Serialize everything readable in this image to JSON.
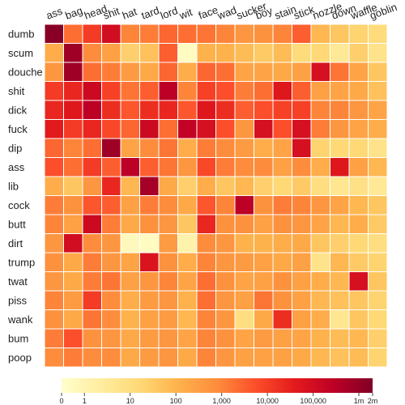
{
  "chart_data": {
    "type": "heatmap",
    "title": "",
    "xlabel": "",
    "ylabel": "",
    "columns": [
      "ass",
      "bag",
      "head",
      "shit",
      "hat",
      "tard",
      "lord",
      "wit",
      "face",
      "wad",
      "sucker",
      "boy",
      "stain",
      "stick",
      "nozzle",
      "down",
      "waffle",
      "goblin"
    ],
    "rows": [
      "dumb",
      "scum",
      "douche",
      "shit",
      "dick",
      "fuck",
      "dip",
      "ass",
      "lib",
      "cock",
      "butt",
      "dirt",
      "trump",
      "twat",
      "piss",
      "wank",
      "bum",
      "poop"
    ],
    "values_log10": [
      [
        6.3,
        3.6,
        4.3,
        5.2,
        3.3,
        3.4,
        3.7,
        3.6,
        3.5,
        3.3,
        3.0,
        3.1,
        3.3,
        3.8,
        2.3,
        2.0,
        1.7,
        1.5
      ],
      [
        2.5,
        6.0,
        3.2,
        2.8,
        1.8,
        2.1,
        3.8,
        0.2,
        2.4,
        2.4,
        2.2,
        1.9,
        2.2,
        1.5,
        1.6,
        1.0,
        1.8,
        1.2
      ],
      [
        3.0,
        6.0,
        3.6,
        3.4,
        2.9,
        2.6,
        3.7,
        2.5,
        3.7,
        3.6,
        2.7,
        2.7,
        2.6,
        2.8,
        5.1,
        3.5,
        2.7,
        2.0
      ],
      [
        4.3,
        4.6,
        5.3,
        4.2,
        3.5,
        3.8,
        5.6,
        3.3,
        4.2,
        4.0,
        3.4,
        3.6,
        4.9,
        3.8,
        2.8,
        2.7,
        2.6,
        2.1
      ],
      [
        4.6,
        4.9,
        5.6,
        4.5,
        3.9,
        4.5,
        4.6,
        3.9,
        4.9,
        4.5,
        3.8,
        4.0,
        4.2,
        4.2,
        3.3,
        3.3,
        3.0,
        2.7
      ],
      [
        4.8,
        4.3,
        4.6,
        4.1,
        3.7,
        5.3,
        3.6,
        5.5,
        5.1,
        4.0,
        3.0,
        5.1,
        4.0,
        5.1,
        3.4,
        3.0,
        2.7,
        2.5
      ],
      [
        3.7,
        3.3,
        3.6,
        6.0,
        2.7,
        3.2,
        3.5,
        2.5,
        3.4,
        3.2,
        2.9,
        2.5,
        2.7,
        5.1,
        1.7,
        1.6,
        1.6,
        1.2
      ],
      [
        4.0,
        3.6,
        4.3,
        3.8,
        5.6,
        3.8,
        3.5,
        3.0,
        4.1,
        3.4,
        3.2,
        3.2,
        2.8,
        3.2,
        2.5,
        4.9,
        2.8,
        2.3
      ],
      [
        2.5,
        2.0,
        3.0,
        4.6,
        2.3,
        5.9,
        2.6,
        1.8,
        2.5,
        2.0,
        2.3,
        1.8,
        1.6,
        1.9,
        1.4,
        1.1,
        1.3,
        1.0
      ],
      [
        3.4,
        3.1,
        3.9,
        3.8,
        2.8,
        3.4,
        3.2,
        2.6,
        3.9,
        3.3,
        5.6,
        3.1,
        3.4,
        3.3,
        3.0,
        2.7,
        2.3,
        2.0
      ],
      [
        3.3,
        2.8,
        5.3,
        3.4,
        2.6,
        3.1,
        3.0,
        2.0,
        4.6,
        3.1,
        3.1,
        2.8,
        3.1,
        3.0,
        2.7,
        2.3,
        2.5,
        1.9
      ],
      [
        3.0,
        5.2,
        3.2,
        3.0,
        0.3,
        0.2,
        2.9,
        0.6,
        3.2,
        3.0,
        2.4,
        2.4,
        2.5,
        2.6,
        2.0,
        1.8,
        1.6,
        1.4
      ],
      [
        3.1,
        2.6,
        3.4,
        3.0,
        2.7,
        5.0,
        3.1,
        2.5,
        3.3,
        3.0,
        2.9,
        2.8,
        2.6,
        2.8,
        1.2,
        2.3,
        1.9,
        1.7
      ],
      [
        3.0,
        2.6,
        3.4,
        3.5,
        2.8,
        3.0,
        3.3,
        2.7,
        3.6,
        3.1,
        2.7,
        2.8,
        3.1,
        2.8,
        2.5,
        2.3,
        5.1,
        2.0
      ],
      [
        3.3,
        2.9,
        4.3,
        3.2,
        2.5,
        2.9,
        3.0,
        2.4,
        3.6,
        3.0,
        2.8,
        3.5,
        3.1,
        2.8,
        2.3,
        2.1,
        2.0,
        1.7
      ],
      [
        3.1,
        2.6,
        3.5,
        3.2,
        2.4,
        2.8,
        2.9,
        2.3,
        3.3,
        3.0,
        1.4,
        2.6,
        4.5,
        2.8,
        2.5,
        1.1,
        2.0,
        1.6
      ],
      [
        3.4,
        4.0,
        3.1,
        3.0,
        2.6,
        2.9,
        3.0,
        2.7,
        3.3,
        3.1,
        2.7,
        2.9,
        2.8,
        2.7,
        2.4,
        2.2,
        2.3,
        1.8
      ],
      [
        3.2,
        3.4,
        3.2,
        3.2,
        2.6,
        2.9,
        3.0,
        2.6,
        3.3,
        3.0,
        2.8,
        2.8,
        2.8,
        2.6,
        2.3,
        2.1,
        2.2,
        1.7
      ]
    ],
    "colorbar": {
      "scale": "log",
      "range_log10": [
        0,
        6.4
      ],
      "ticks": [
        {
          "label": "0",
          "log10": 0
        },
        {
          "label": "1",
          "log10": 0.5
        },
        {
          "label": "10",
          "log10": 1.5
        },
        {
          "label": "100",
          "log10": 2.5
        },
        {
          "label": "1,000",
          "log10": 3.5
        },
        {
          "label": "10,000",
          "log10": 4.5
        },
        {
          "label": "100,000",
          "log10": 5.5
        },
        {
          "label": "1m",
          "log10": 6.5
        },
        {
          "label": "2m",
          "log10": 6.8
        }
      ],
      "colormap": "YlOrRd",
      "stops": [
        "#ffffcc",
        "#ffeda0",
        "#fed976",
        "#feb24c",
        "#fd8d3c",
        "#fc4e2a",
        "#e31a1c",
        "#bd0026",
        "#800026"
      ]
    },
    "grid": true,
    "legend": "bottom colorbar"
  }
}
